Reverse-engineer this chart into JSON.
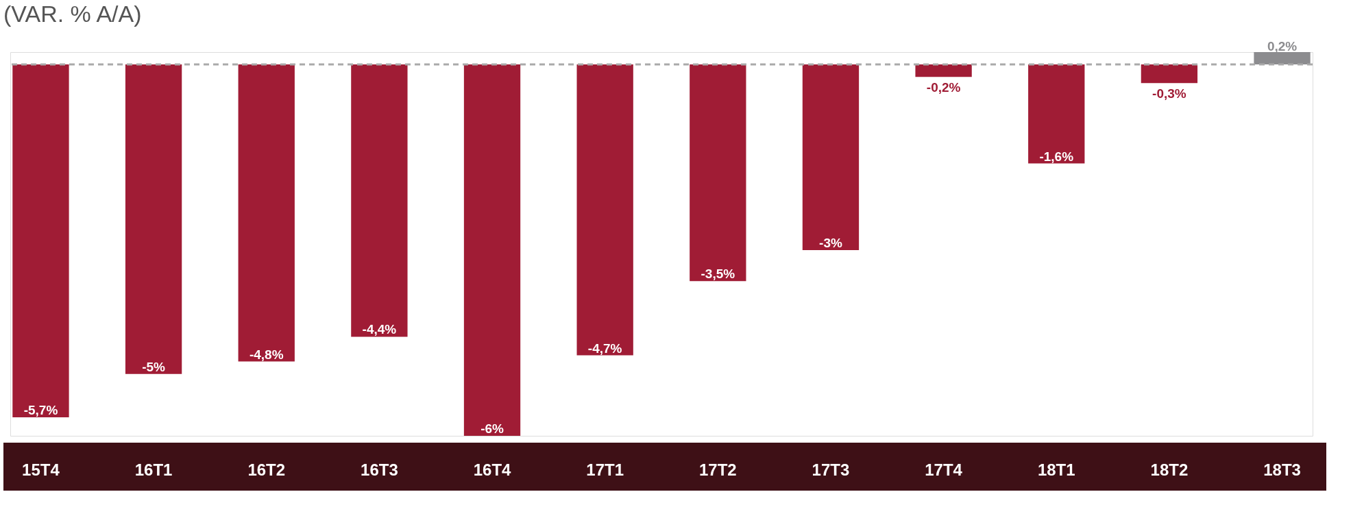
{
  "chart_data": {
    "type": "bar",
    "title": "(VAR. % A/A)",
    "categories": [
      "15T4",
      "16T1",
      "16T2",
      "16T3",
      "16T4",
      "17T1",
      "17T2",
      "17T3",
      "17T4",
      "18T1",
      "18T2",
      "18T3"
    ],
    "values": [
      -5.7,
      -5,
      -4.8,
      -4.4,
      -6,
      -4.7,
      -3.5,
      -3,
      -0.2,
      -1.6,
      -0.3,
      0.2
    ],
    "value_labels": [
      "-5,7%",
      "-5%",
      "-4,8%",
      "-4,4%",
      "-6%",
      "-4,7%",
      "-3,5%",
      "-3%",
      "-0,2%",
      "-1,6%",
      "-0,3%",
      "0,2%"
    ],
    "colors": [
      "#a01c35",
      "#a01c35",
      "#a01c35",
      "#a01c35",
      "#a01c35",
      "#a01c35",
      "#a01c35",
      "#a01c35",
      "#a01c35",
      "#a01c35",
      "#a01c35",
      "#8c8c8f"
    ],
    "ref_lines": [
      {
        "axis": "y",
        "value": 0,
        "color": "#aaaaaa",
        "line_style": "dashed"
      }
    ]
  }
}
